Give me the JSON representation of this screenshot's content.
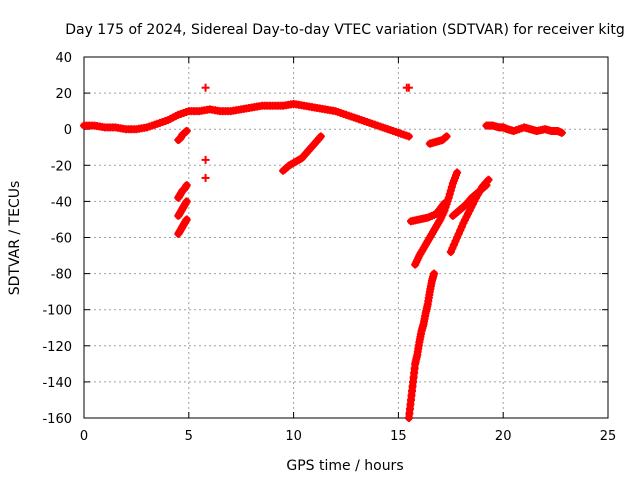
{
  "chart_data": {
    "type": "scatter",
    "title": "Day 175 of 2024, Sidereal Day-to-day VTEC variation (SDTVAR) for receiver kitg",
    "xlabel": "GPS time / hours",
    "ylabel": "SDTVAR / TECUs",
    "xlim": [
      0,
      25
    ],
    "ylim": [
      -160,
      40
    ],
    "xticks": [
      0,
      5,
      10,
      15,
      20,
      25
    ],
    "yticks": [
      -160,
      -140,
      -120,
      -100,
      -80,
      -60,
      -40,
      -20,
      0,
      20,
      40
    ],
    "grid": true,
    "marker": "plus",
    "color": "#ff0000",
    "series": [
      {
        "name": "main-arc",
        "x": [
          0,
          0.5,
          1,
          1.5,
          2,
          2.5,
          3,
          3.5,
          4,
          4.5,
          5,
          5.5,
          6,
          6.5,
          7,
          7.5,
          8,
          8.5,
          9,
          9.5,
          10,
          10.5,
          11,
          11.5,
          12,
          12.5,
          13,
          13.5,
          14,
          14.5,
          15,
          15.5
        ],
        "y": [
          2,
          2,
          1,
          1,
          0,
          0,
          1,
          3,
          5,
          8,
          10,
          10,
          11,
          10,
          10,
          11,
          12,
          13,
          13,
          13,
          14,
          13,
          12,
          11,
          10,
          8,
          6,
          4,
          2,
          0,
          -2,
          -4
        ]
      },
      {
        "name": "segment-a",
        "x": [
          4.5,
          4.6,
          4.7,
          4.8,
          4.9
        ],
        "y": [
          -6,
          -5,
          -3,
          -2,
          -1
        ]
      },
      {
        "name": "segment-b",
        "x": [
          4.5,
          4.6,
          4.7,
          4.8,
          4.9
        ],
        "y": [
          -38,
          -36,
          -34,
          -33,
          -31
        ]
      },
      {
        "name": "segment-c",
        "x": [
          4.5,
          4.6,
          4.7,
          4.8,
          4.9
        ],
        "y": [
          -48,
          -46,
          -44,
          -42,
          -40
        ]
      },
      {
        "name": "segment-d",
        "x": [
          4.5,
          4.6,
          4.7,
          4.8,
          4.9
        ],
        "y": [
          -58,
          -56,
          -54,
          -52,
          -50
        ]
      },
      {
        "name": "isolated-points",
        "x": [
          5.8,
          5.8,
          5.8,
          15.4,
          15.5
        ],
        "y": [
          23,
          -17,
          -27,
          23,
          23
        ]
      },
      {
        "name": "segment-e",
        "x": [
          9.5,
          9.8,
          10.1,
          10.4,
          10.7,
          11.0,
          11.3
        ],
        "y": [
          -23,
          -20,
          -18,
          -16,
          -12,
          -8,
          -4
        ]
      },
      {
        "name": "segment-f",
        "x": [
          15.8,
          16.0,
          16.2,
          16.4,
          16.6,
          16.8,
          17.0,
          17.2,
          17.4,
          17.6,
          17.8
        ],
        "y": [
          -75,
          -70,
          -66,
          -62,
          -58,
          -54,
          -50,
          -45,
          -38,
          -30,
          -24
        ]
      },
      {
        "name": "segment-g",
        "x": [
          15.5,
          15.6,
          15.7,
          15.8,
          15.9,
          16.0,
          16.1,
          16.2,
          16.3,
          16.4,
          16.5,
          16.6,
          16.7
        ],
        "y": [
          -160,
          -150,
          -140,
          -130,
          -125,
          -118,
          -112,
          -108,
          -102,
          -97,
          -90,
          -84,
          -80
        ]
      },
      {
        "name": "segment-h",
        "x": [
          17.5,
          17.8,
          18.1,
          18.4,
          18.7,
          19.0,
          19.3
        ],
        "y": [
          -68,
          -60,
          -52,
          -45,
          -38,
          -32,
          -28
        ]
      },
      {
        "name": "segment-i",
        "x": [
          15.6,
          16.0,
          16.4,
          16.8,
          17.0,
          17.2
        ],
        "y": [
          -51,
          -50,
          -49,
          -47,
          -44,
          -41
        ]
      },
      {
        "name": "segment-j",
        "x": [
          17.6,
          17.9,
          18.2,
          18.5,
          18.8,
          19.0,
          19.2
        ],
        "y": [
          -48,
          -45,
          -42,
          -38,
          -35,
          -33,
          -31
        ]
      },
      {
        "name": "segment-k",
        "x": [
          16.5,
          16.8,
          17.1,
          17.3
        ],
        "y": [
          -8,
          -7,
          -6,
          -4
        ]
      },
      {
        "name": "late-arc",
        "x": [
          19.2,
          19.5,
          19.8,
          20.0,
          20.2,
          20.5,
          21.0,
          21.3,
          21.6,
          22.0,
          22.3,
          22.6,
          22.8
        ],
        "y": [
          2,
          2,
          1,
          1,
          0,
          -1,
          1,
          0,
          -1,
          0,
          -1,
          -1,
          -2
        ]
      }
    ]
  }
}
